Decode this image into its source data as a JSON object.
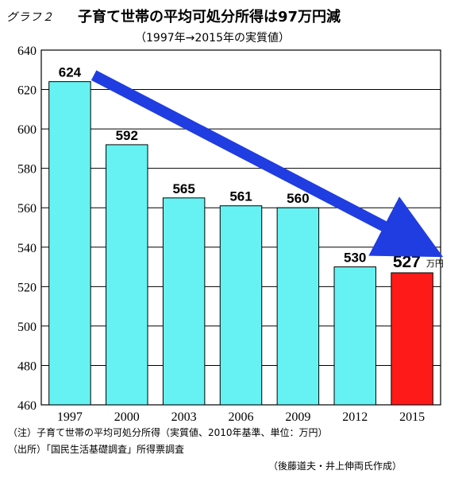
{
  "chart_data": {
    "type": "bar",
    "title_label": "グラフ２",
    "title": "子育て世帯の平均可処分所得は97万円減",
    "subtitle": "（1997年→2015年の実質値）",
    "categories": [
      "1997",
      "2000",
      "2003",
      "2006",
      "2009",
      "2012",
      "2015"
    ],
    "values": [
      624,
      592,
      565,
      561,
      560,
      530,
      527
    ],
    "value_labels": [
      "624",
      "592",
      "565",
      "561",
      "560",
      "530",
      "527"
    ],
    "highlight_unit": "万円",
    "ylim": [
      460,
      640
    ],
    "yticks": [
      460,
      480,
      500,
      520,
      540,
      560,
      580,
      600,
      620,
      640
    ],
    "grid": true,
    "bar_color": "#66f2f2",
    "highlight_color": "#ff1a1a",
    "arrow_color": "#1f3de0"
  },
  "notes": {
    "note1": "（注）子育て世帯の平均可処分所得（実質値、2010年基準、単位：万円）",
    "note2": "（出所）「国民生活基礎調査」所得票調査",
    "credit": "（後藤道夫・井上伸両氏作成）"
  }
}
